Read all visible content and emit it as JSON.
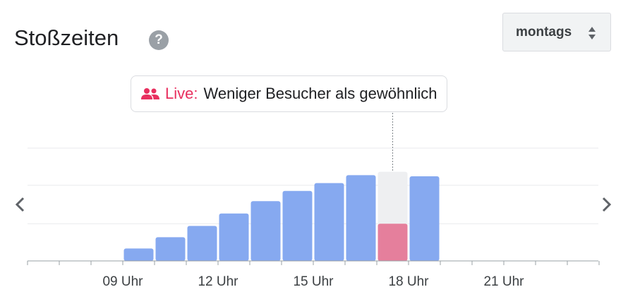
{
  "header": {
    "title": "Stoßzeiten",
    "help_icon": "?"
  },
  "day_selector": {
    "value": "montags"
  },
  "live": {
    "label": "Live:",
    "text": "Weniger Besucher als gewöhnlich",
    "icon": "people-icon",
    "color": "#e8305f"
  },
  "navigation": {
    "prev_icon": "chevron-left-icon",
    "next_icon": "chevron-right-icon"
  },
  "chart_data": {
    "type": "bar",
    "title": "",
    "xlabel": "",
    "ylabel": "",
    "x_ticks": [
      "09 Uhr",
      "12 Uhr",
      "15 Uhr",
      "18 Uhr",
      "21 Uhr"
    ],
    "hours": [
      6,
      7,
      8,
      9,
      10,
      11,
      12,
      13,
      14,
      15,
      16,
      17,
      18,
      19,
      20,
      21,
      22,
      23
    ],
    "usual_busyness": [
      0,
      0,
      0,
      11,
      21,
      31,
      42,
      53,
      62,
      69,
      76,
      79,
      75,
      0,
      0,
      0,
      0,
      0
    ],
    "live_busyness": {
      "hour": 17,
      "value": 33
    },
    "current_hour": 17,
    "ylim": [
      0,
      100
    ],
    "colors": {
      "usual": "#86a9f0",
      "current_usual": "#eeeff1",
      "live": "#e57f9c",
      "grid": "#e9eaed",
      "axis": "#9aa0a6"
    },
    "grid": true
  }
}
